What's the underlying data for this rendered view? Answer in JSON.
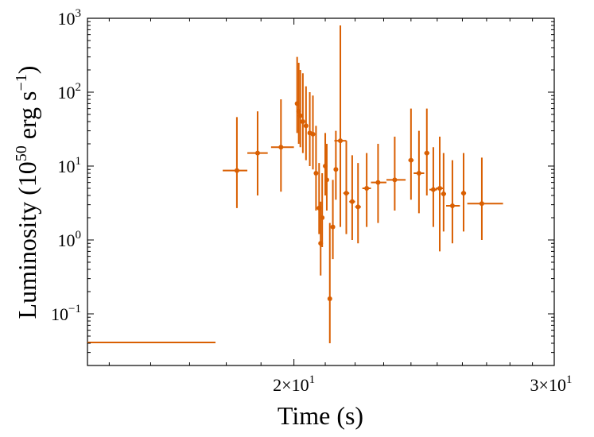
{
  "chart_data": {
    "type": "scatter",
    "title": "",
    "xlabel": "Time (s)",
    "ylabel": "Luminosity (10^50 erg s^-1)",
    "ylabel_parts": {
      "pre": "Luminosity (10",
      "exp1": "50",
      "mid": " erg s",
      "exp2": "−1",
      "post": ")"
    },
    "xscale": "log",
    "yscale": "log",
    "xlim": [
      14.5,
      30
    ],
    "ylim": [
      0.02,
      1000
    ],
    "grid": false,
    "legend": "none",
    "color": "#d95f02",
    "x_ticks": [
      {
        "value": 20,
        "mant": "2",
        "exp": "1"
      },
      {
        "value": 30,
        "mant": "3",
        "exp": "1"
      }
    ],
    "y_ticks": [
      {
        "value": 0.1,
        "base": "10",
        "exp": "−1"
      },
      {
        "value": 1,
        "base": "10",
        "exp": "0"
      },
      {
        "value": 10,
        "base": "10",
        "exp": "1"
      },
      {
        "value": 100,
        "base": "10",
        "exp": "2"
      },
      {
        "value": 1000,
        "base": "10",
        "exp": "3"
      }
    ],
    "points": [
      {
        "x": 16.0,
        "y": 0.041,
        "xerr": [
          13.5,
          17.7
        ],
        "yerr": null
      },
      {
        "x": 18.3,
        "y": 8.7,
        "xerr": [
          17.9,
          18.6
        ],
        "yerr": [
          2.7,
          46
        ]
      },
      {
        "x": 18.9,
        "y": 15,
        "xerr": [
          18.6,
          19.2
        ],
        "yerr": [
          4.0,
          55
        ]
      },
      {
        "x": 19.6,
        "y": 18,
        "xerr": [
          19.3,
          20.0
        ],
        "yerr": [
          4.5,
          80
        ]
      },
      {
        "x": 20.1,
        "y": 70,
        "xerr": [
          20.05,
          20.15
        ],
        "yerr": [
          28,
          300
        ]
      },
      {
        "x": 20.15,
        "y": 55,
        "xerr": [
          20.12,
          20.18
        ],
        "yerr": [
          20,
          250
        ]
      },
      {
        "x": 20.2,
        "y": 48,
        "xerr": [
          20.17,
          20.23
        ],
        "yerr": [
          18,
          200
        ]
      },
      {
        "x": 20.28,
        "y": 40,
        "xerr": [
          20.24,
          20.32
        ],
        "yerr": [
          15,
          180
        ]
      },
      {
        "x": 20.38,
        "y": 35,
        "xerr": [
          20.34,
          20.42
        ],
        "yerr": [
          12,
          120
        ]
      },
      {
        "x": 20.5,
        "y": 28,
        "xerr": [
          20.45,
          20.55
        ],
        "yerr": [
          10,
          100
        ]
      },
      {
        "x": 20.6,
        "y": 27,
        "xerr": [
          20.56,
          20.64
        ],
        "yerr": [
          9,
          90
        ]
      },
      {
        "x": 20.7,
        "y": 8,
        "xerr": [
          20.66,
          20.74
        ],
        "yerr": [
          2.5,
          35
        ]
      },
      {
        "x": 20.8,
        "y": 2.7,
        "xerr": [
          20.76,
          20.84
        ],
        "yerr": [
          1.2,
          11
        ]
      },
      {
        "x": 20.85,
        "y": 0.9,
        "xerr": [
          20.82,
          20.88
        ],
        "yerr": [
          0.33,
          3.3
        ]
      },
      {
        "x": 20.9,
        "y": 2.0,
        "xerr": [
          20.87,
          20.93
        ],
        "yerr": [
          0.8,
          8
        ]
      },
      {
        "x": 21.0,
        "y": 10,
        "xerr": [
          20.96,
          21.04
        ],
        "yerr": [
          4,
          28
        ]
      },
      {
        "x": 21.05,
        "y": 6.5,
        "xerr": [
          21.0,
          21.1
        ],
        "yerr": [
          2.5,
          20
        ]
      },
      {
        "x": 21.15,
        "y": 0.16,
        "xerr": [
          21.12,
          21.18
        ],
        "yerr": [
          0.04,
          1.7
        ]
      },
      {
        "x": 21.25,
        "y": 1.5,
        "xerr": [
          21.22,
          21.28
        ],
        "yerr": [
          0.55,
          6.5
        ]
      },
      {
        "x": 21.35,
        "y": 9,
        "xerr": [
          21.3,
          21.4
        ],
        "yerr": [
          3.5,
          30
        ]
      },
      {
        "x": 21.5,
        "y": 22,
        "xerr": [
          21.3,
          21.7
        ],
        "yerr": [
          1.5,
          800
        ]
      },
      {
        "x": 21.7,
        "y": 4.3,
        "xerr": [
          21.6,
          21.8
        ],
        "yerr": [
          1.2,
          22
        ]
      },
      {
        "x": 21.9,
        "y": 3.3,
        "xerr": [
          21.8,
          22.0
        ],
        "yerr": [
          1.0,
          14
        ]
      },
      {
        "x": 22.1,
        "y": 2.8,
        "xerr": [
          22.0,
          22.2
        ],
        "yerr": [
          0.9,
          11
        ]
      },
      {
        "x": 22.4,
        "y": 5,
        "xerr": [
          22.25,
          22.55
        ],
        "yerr": [
          1.5,
          15
        ]
      },
      {
        "x": 22.8,
        "y": 6,
        "xerr": [
          22.55,
          23.1
        ],
        "yerr": [
          1.7,
          20
        ]
      },
      {
        "x": 23.4,
        "y": 6.5,
        "xerr": [
          23.1,
          23.8
        ],
        "yerr": [
          2.5,
          25
        ]
      },
      {
        "x": 24.0,
        "y": 12,
        "xerr": [
          23.9,
          24.1
        ],
        "yerr": [
          3.5,
          60
        ]
      },
      {
        "x": 24.3,
        "y": 8,
        "xerr": [
          24.1,
          24.5
        ],
        "yerr": [
          2.3,
          30
        ]
      },
      {
        "x": 24.6,
        "y": 15,
        "xerr": [
          24.5,
          24.7
        ],
        "yerr": [
          4.0,
          60
        ]
      },
      {
        "x": 24.85,
        "y": 4.8,
        "xerr": [
          24.7,
          25.0
        ],
        "yerr": [
          1.5,
          18
        ]
      },
      {
        "x": 25.1,
        "y": 5.0,
        "xerr": [
          24.95,
          25.25
        ],
        "yerr": [
          0.7,
          25
        ]
      },
      {
        "x": 25.25,
        "y": 4.2,
        "xerr": [
          25.15,
          25.35
        ],
        "yerr": [
          1.3,
          15
        ]
      },
      {
        "x": 25.6,
        "y": 2.9,
        "xerr": [
          25.35,
          25.9
        ],
        "yerr": [
          0.9,
          12
        ]
      },
      {
        "x": 26.05,
        "y": 4.3,
        "xerr": [
          25.95,
          26.15
        ],
        "yerr": [
          1.3,
          15
        ]
      },
      {
        "x": 26.8,
        "y": 3.1,
        "xerr": [
          26.2,
          27.7
        ],
        "yerr": [
          1.0,
          13
        ]
      }
    ]
  }
}
